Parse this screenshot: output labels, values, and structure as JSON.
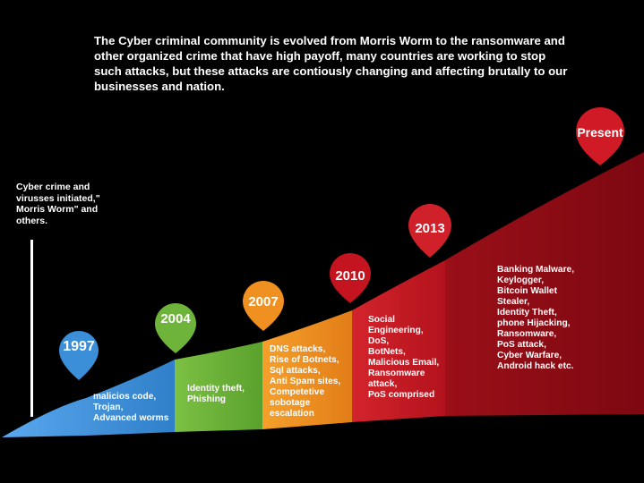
{
  "intro_text": "The Cyber criminal community is evolved from Morris Worm to the ransomware and other organized crime that have high payoff, many countries are working to stop such attacks, but these attacks are contiously changing and affecting brutally to our businesses and nation.",
  "origin_text": "Cyber crime and virusses initiated,\" Morris Worm\" and others.",
  "colors": {
    "background": "#000000",
    "blue": "#3a8fd8",
    "green": "#6fb43a",
    "orange": "#f09021",
    "red_2010": "#b8131d",
    "red_2013": "#d0202a",
    "dark_red": "#8c0a14"
  },
  "milestones": [
    {
      "year": "1997",
      "color": "#3a8fd8",
      "events": "malicios code,\nTrojan,\nAdvanced worms"
    },
    {
      "year": "2004",
      "color": "#6fb43a",
      "events": "Identity theft,\nPhishing"
    },
    {
      "year": "2007",
      "color": "#f09021",
      "events": "DNS attacks,\nRise of Botnets,\nSql attacks,\nAnti Spam sites,\nCompetetive\nsobotage\nescalation"
    },
    {
      "year": "2010",
      "color": "#c4141f",
      "events": "Social\nEngineering,\nDoS,\nBotNets,\nMalicious Email,\nRansomware\nattack,\nPoS comprised"
    },
    {
      "year": "2013",
      "color": "#d0202a",
      "events": ""
    },
    {
      "year": "Present",
      "color": "#d01a26",
      "events": "Banking Malware,\nKeylogger,\nBitcoin Wallet\nStealer,\nIdentity Theft,\nphone Hijacking,\nRansomware,\nPoS attack,\nCyber Warfare,\nAndroid hack etc."
    }
  ]
}
